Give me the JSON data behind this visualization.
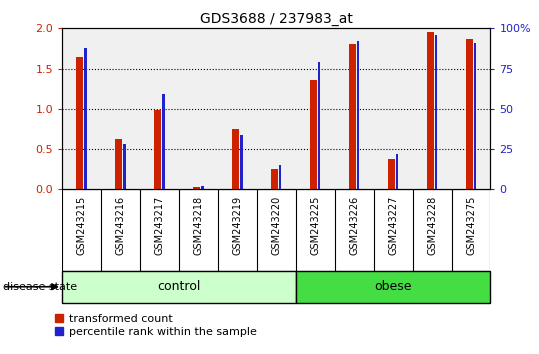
{
  "title": "GDS3688 / 237983_at",
  "samples": [
    "GSM243215",
    "GSM243216",
    "GSM243217",
    "GSM243218",
    "GSM243219",
    "GSM243220",
    "GSM243225",
    "GSM243226",
    "GSM243227",
    "GSM243228",
    "GSM243275"
  ],
  "red_values": [
    1.65,
    0.62,
    0.98,
    0.03,
    0.75,
    0.25,
    1.36,
    1.8,
    0.38,
    1.95,
    1.87
  ],
  "blue_pct": [
    88,
    28,
    59,
    2,
    34,
    15,
    79,
    92,
    22,
    96,
    91
  ],
  "n_control": 6,
  "n_obese": 5,
  "ylim_left": [
    0,
    2.0
  ],
  "ylim_right": [
    0,
    100
  ],
  "yticks_left": [
    0,
    0.5,
    1.0,
    1.5,
    2.0
  ],
  "yticks_right": [
    0,
    25,
    50,
    75,
    100
  ],
  "red_color": "#cc2200",
  "blue_color": "#2222cc",
  "grid_color": "#000000",
  "plot_bg": "#f0f0f0",
  "tick_bg": "#c8c8c8",
  "ctrl_color": "#ccffcc",
  "obese_color": "#44dd44",
  "label_red": "transformed count",
  "label_blue": "percentile rank within the sample",
  "disease_state_label": "disease state"
}
